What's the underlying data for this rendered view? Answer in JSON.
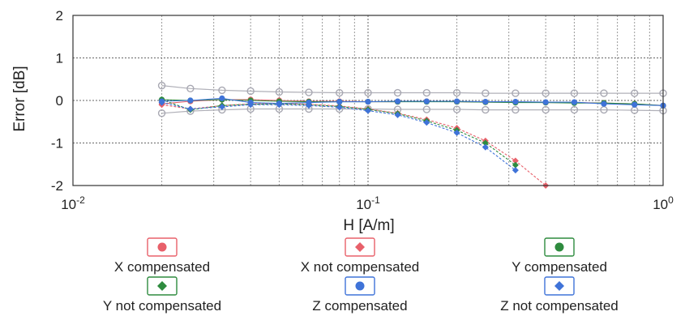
{
  "chart_data": {
    "type": "line",
    "title": "",
    "xlabel": "H [A/m]",
    "ylabel": "Error [dB]",
    "xscale": "log",
    "xlim": [
      0.01,
      1
    ],
    "ylim": [
      -2,
      2
    ],
    "xticks": [
      {
        "value": 0.01,
        "base": "10",
        "exp": "-2"
      },
      {
        "value": 0.1,
        "base": "10",
        "exp": "-1"
      },
      {
        "value": 1,
        "base": "10",
        "exp": "0"
      }
    ],
    "yticks": [
      {
        "value": 2,
        "label": "2"
      },
      {
        "value": 1,
        "label": "1"
      },
      {
        "value": 0,
        "label": "0"
      },
      {
        "value": -1,
        "label": "-1"
      },
      {
        "value": -2,
        "label": "-2"
      }
    ],
    "grid": true,
    "legend_position": "bottom",
    "limit_bands": {
      "upper": {
        "x": [
          0.02,
          0.025,
          0.032,
          0.04,
          0.05,
          0.063,
          0.08,
          0.1,
          0.126,
          0.158,
          0.2,
          0.25,
          0.316,
          0.4,
          0.5,
          0.63,
          0.8,
          1.0
        ],
        "y": [
          0.35,
          0.28,
          0.24,
          0.22,
          0.2,
          0.19,
          0.18,
          0.18,
          0.18,
          0.18,
          0.18,
          0.17,
          0.17,
          0.17,
          0.17,
          0.17,
          0.17,
          0.17
        ]
      },
      "lower": {
        "x": [
          0.02,
          0.025,
          0.032,
          0.04,
          0.05,
          0.063,
          0.08,
          0.1,
          0.126,
          0.158,
          0.2,
          0.25,
          0.316,
          0.4,
          0.5,
          0.63,
          0.8,
          1.0
        ],
        "y": [
          -0.3,
          -0.25,
          -0.22,
          -0.2,
          -0.2,
          -0.2,
          -0.2,
          -0.2,
          -0.21,
          -0.21,
          -0.21,
          -0.22,
          -0.22,
          -0.22,
          -0.22,
          -0.22,
          -0.23,
          -0.24
        ]
      }
    },
    "series": [
      {
        "name": "X compensated",
        "color": "#e8606a",
        "marker": "circle",
        "x": [
          0.02,
          0.025,
          0.032,
          0.04,
          0.05,
          0.063,
          0.08,
          0.1,
          0.126,
          0.158,
          0.2,
          0.25,
          0.316,
          0.4,
          0.5,
          0.63,
          0.8,
          1.0
        ],
        "y": [
          -0.08,
          -0.02,
          0.02,
          0.02,
          0.0,
          -0.02,
          -0.02,
          -0.03,
          -0.03,
          -0.02,
          -0.03,
          -0.04,
          -0.04,
          -0.05,
          -0.05,
          -0.06,
          -0.08,
          -0.12
        ]
      },
      {
        "name": "X not compensated",
        "color": "#e8606a",
        "marker": "diamond",
        "x": [
          0.02,
          0.025,
          0.032,
          0.04,
          0.05,
          0.063,
          0.08,
          0.1,
          0.126,
          0.158,
          0.2,
          0.25,
          0.316,
          0.4
        ],
        "y": [
          -0.1,
          -0.2,
          -0.12,
          -0.08,
          -0.07,
          -0.09,
          -0.13,
          -0.2,
          -0.3,
          -0.45,
          -0.65,
          -0.95,
          -1.42,
          -2.0
        ]
      },
      {
        "name": "Y compensated",
        "color": "#2e8b3e",
        "marker": "circle",
        "x": [
          0.02,
          0.025,
          0.032,
          0.04,
          0.05,
          0.063,
          0.08,
          0.1,
          0.126,
          0.158,
          0.2,
          0.25,
          0.316,
          0.4,
          0.5,
          0.63,
          0.8,
          1.0
        ],
        "y": [
          0.02,
          0.0,
          0.02,
          0.0,
          -0.02,
          -0.03,
          -0.03,
          -0.03,
          -0.03,
          -0.03,
          -0.03,
          -0.04,
          -0.05,
          -0.05,
          -0.06,
          -0.06,
          -0.08,
          -0.12
        ]
      },
      {
        "name": "Y not compensated",
        "color": "#2e8b3e",
        "marker": "diamond",
        "x": [
          0.02,
          0.025,
          0.032,
          0.04,
          0.05,
          0.063,
          0.08,
          0.1,
          0.126,
          0.158,
          0.2,
          0.25,
          0.316
        ],
        "y": [
          0.02,
          -0.22,
          -0.12,
          -0.09,
          -0.08,
          -0.1,
          -0.14,
          -0.21,
          -0.31,
          -0.48,
          -0.7,
          -1.0,
          -1.52
        ]
      },
      {
        "name": "Z compensated",
        "color": "#3f73d8",
        "marker": "circle",
        "x": [
          0.02,
          0.025,
          0.032,
          0.04,
          0.05,
          0.063,
          0.08,
          0.1,
          0.126,
          0.158,
          0.2,
          0.25,
          0.316,
          0.4,
          0.5,
          0.63,
          0.8,
          1.0
        ],
        "y": [
          -0.02,
          0.0,
          0.05,
          -0.05,
          -0.07,
          -0.05,
          -0.03,
          -0.03,
          -0.02,
          -0.02,
          -0.02,
          -0.03,
          -0.03,
          -0.04,
          -0.04,
          -0.08,
          -0.1,
          -0.12
        ]
      },
      {
        "name": "Z not compensated",
        "color": "#3f73d8",
        "marker": "diamond",
        "x": [
          0.02,
          0.025,
          0.032,
          0.04,
          0.05,
          0.063,
          0.08,
          0.1,
          0.126,
          0.158,
          0.2,
          0.25,
          0.316
        ],
        "y": [
          -0.05,
          -0.2,
          -0.15,
          -0.1,
          -0.1,
          -0.12,
          -0.16,
          -0.24,
          -0.34,
          -0.52,
          -0.76,
          -1.1,
          -1.64
        ]
      }
    ]
  }
}
